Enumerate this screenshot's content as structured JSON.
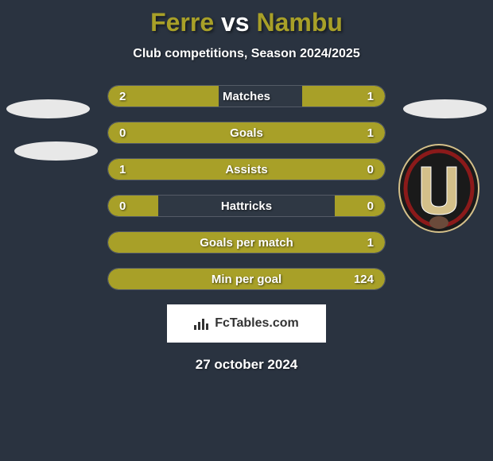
{
  "title": {
    "player1": "Ferre",
    "vs": "vs",
    "player2": "Nambu"
  },
  "subtitle": "Club competitions, Season 2024/2025",
  "colors": {
    "bar_color": "#a8a028",
    "bar_empty": "rgba(60,70,80,0.3)",
    "background": "#2a3340",
    "title_accent": "#a8a028"
  },
  "stats": [
    {
      "label": "Matches",
      "left_val": "2",
      "right_val": "1",
      "left_pct": 40,
      "right_pct": 30
    },
    {
      "label": "Goals",
      "left_val": "0",
      "right_val": "1",
      "left_pct": 18,
      "right_pct": 82
    },
    {
      "label": "Assists",
      "left_val": "1",
      "right_val": "0",
      "left_pct": 82,
      "right_pct": 18
    },
    {
      "label": "Hattricks",
      "left_val": "0",
      "right_val": "0",
      "left_pct": 18,
      "right_pct": 18
    },
    {
      "label": "Goals per match",
      "left_val": "",
      "right_val": "1",
      "left_pct": 18,
      "right_pct": 82
    },
    {
      "label": "Min per goal",
      "left_val": "",
      "right_val": "124",
      "left_pct": 18,
      "right_pct": 82
    }
  ],
  "footer": {
    "brand": "FcTables.com"
  },
  "date": "27 october 2024",
  "badge": {
    "bg": "#1a1a1a",
    "ring": "#8b1a1a",
    "letter": "U",
    "letter_color": "#d4c08a"
  }
}
